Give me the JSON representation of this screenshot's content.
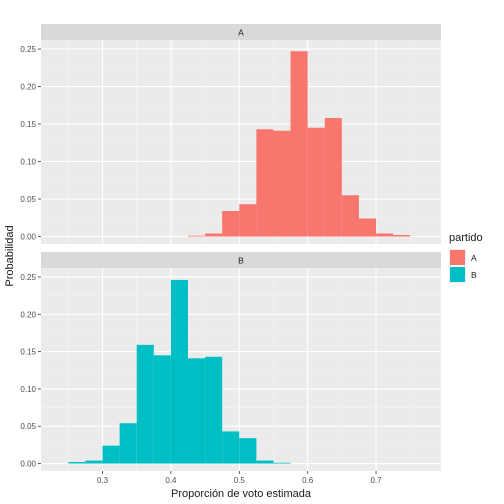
{
  "chart_data": {
    "type": "bar",
    "xlabel": "Proporción de voto estimada",
    "ylabel": "Probabilidad",
    "xlim": [
      0.21,
      0.795
    ],
    "ylim": [
      -0.01,
      0.262
    ],
    "x_ticks": [
      0.3,
      0.4,
      0.5,
      0.6,
      0.7
    ],
    "x_tick_labels": [
      "0.3",
      "0.4",
      "0.5",
      "0.6",
      "0.7"
    ],
    "y_ticks": [
      0.0,
      0.05,
      0.1,
      0.15,
      0.2,
      0.25
    ],
    "y_tick_labels": [
      "0.00",
      "0.05",
      "0.10",
      "0.15",
      "0.20",
      "0.25"
    ],
    "grid": true,
    "legend": {
      "title": "partido",
      "position": "right",
      "entries": [
        {
          "label": "A",
          "color": "#F8766D"
        },
        {
          "label": "B",
          "color": "#00BFC4"
        }
      ]
    },
    "bin_width": 0.025,
    "panels": [
      {
        "strip": "A",
        "color": "#F8766D",
        "bins": [
          {
            "x": 0.4375,
            "y": 0.001
          },
          {
            "x": 0.4625,
            "y": 0.004
          },
          {
            "x": 0.4875,
            "y": 0.034
          },
          {
            "x": 0.5125,
            "y": 0.043
          },
          {
            "x": 0.5375,
            "y": 0.143
          },
          {
            "x": 0.5625,
            "y": 0.141
          },
          {
            "x": 0.5875,
            "y": 0.247
          },
          {
            "x": 0.6125,
            "y": 0.145
          },
          {
            "x": 0.6375,
            "y": 0.158
          },
          {
            "x": 0.6625,
            "y": 0.055
          },
          {
            "x": 0.6875,
            "y": 0.024
          },
          {
            "x": 0.7125,
            "y": 0.004
          },
          {
            "x": 0.7375,
            "y": 0.002
          }
        ]
      },
      {
        "strip": "B",
        "color": "#00BFC4",
        "bins": [
          {
            "x": 0.2625,
            "y": 0.002
          },
          {
            "x": 0.2875,
            "y": 0.004
          },
          {
            "x": 0.3125,
            "y": 0.024
          },
          {
            "x": 0.3375,
            "y": 0.054
          },
          {
            "x": 0.3625,
            "y": 0.159
          },
          {
            "x": 0.3875,
            "y": 0.145
          },
          {
            "x": 0.4125,
            "y": 0.246
          },
          {
            "x": 0.4375,
            "y": 0.141
          },
          {
            "x": 0.4625,
            "y": 0.143
          },
          {
            "x": 0.4875,
            "y": 0.043
          },
          {
            "x": 0.5125,
            "y": 0.034
          },
          {
            "x": 0.5375,
            "y": 0.004
          },
          {
            "x": 0.5625,
            "y": 0.001
          }
        ]
      }
    ]
  }
}
